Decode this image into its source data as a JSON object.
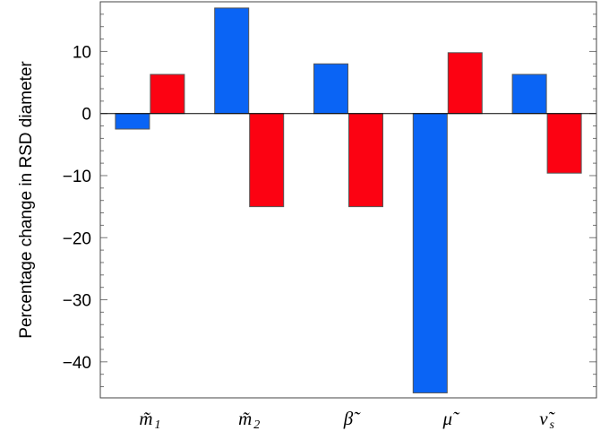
{
  "chart_data": {
    "type": "bar",
    "title": "",
    "xlabel": "",
    "ylabel": "Percentage change in RSD diameter",
    "categories": [
      {
        "base": "m̃",
        "sub": "1"
      },
      {
        "base": "m̃",
        "sub": "2"
      },
      {
        "base": "β̃",
        "sub": ""
      },
      {
        "base": "μ̃",
        "sub": ""
      },
      {
        "base": "ν̃",
        "sub": "s"
      }
    ],
    "series": [
      {
        "color": "#0a64f5",
        "values": [
          -2.5,
          17.0,
          8.0,
          -45.0,
          6.3
        ]
      },
      {
        "color": "#fc0212",
        "values": [
          6.3,
          -15.0,
          -15.0,
          9.8,
          -9.6
        ]
      }
    ],
    "ylim": [
      -45.8,
      18.0
    ],
    "yticks": [
      10,
      0,
      -10,
      -20,
      -30,
      -40
    ],
    "ytick_labels": [
      "10",
      "0",
      "−10",
      "−20",
      "−30",
      "−40"
    ],
    "grid": false,
    "legend": "none"
  }
}
